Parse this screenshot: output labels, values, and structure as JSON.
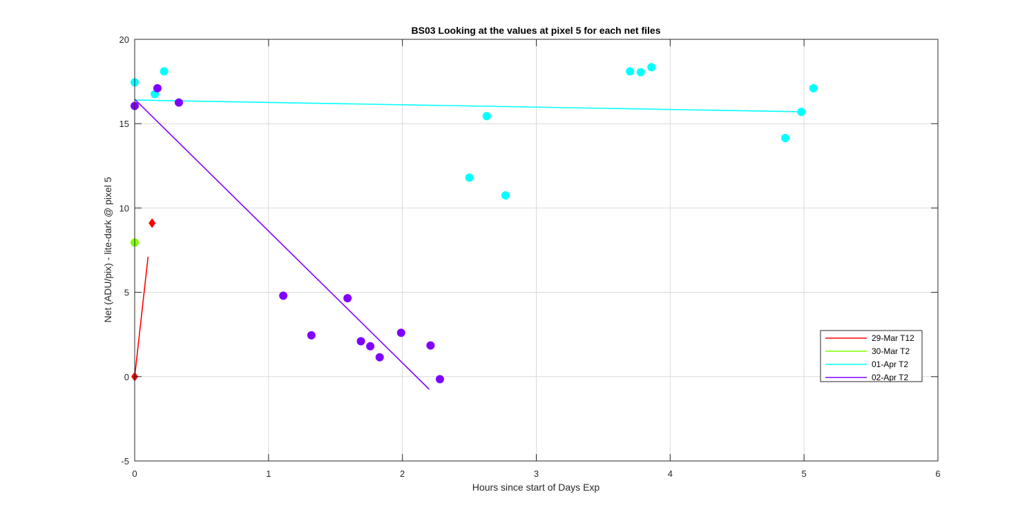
{
  "chart_data": {
    "type": "scatter",
    "title": "BS03  Looking at the values at pixel 5 for each net files",
    "xlabel": "Hours since start of Days Exp",
    "ylabel": "Net (ADU/pix) - lite-dark @ pixel 5",
    "xlim": [
      0,
      6
    ],
    "ylim": [
      -5,
      20
    ],
    "xticks": [
      0,
      1,
      2,
      3,
      4,
      5,
      6
    ],
    "yticks": [
      -5,
      0,
      5,
      10,
      15,
      20
    ],
    "grid": true,
    "legend_position": "lower-right",
    "series": [
      {
        "name": "29-Mar T12",
        "color": "#ff0000",
        "marker": "diamond",
        "points": [
          [
            0.0,
            0.0
          ],
          [
            0.13,
            9.1
          ]
        ],
        "fit": [
          [
            0.0,
            0.0
          ],
          [
            0.1,
            7.1
          ]
        ]
      },
      {
        "name": "30-Mar T2",
        "color": "#80ff00",
        "marker": "circle",
        "points": [
          [
            0.0,
            7.95
          ]
        ],
        "fit": []
      },
      {
        "name": "01-Apr T2",
        "color": "#00ffff",
        "marker": "circle",
        "points": [
          [
            0.0,
            17.45
          ],
          [
            0.15,
            16.75
          ],
          [
            0.22,
            18.1
          ],
          [
            2.5,
            11.8
          ],
          [
            2.63,
            15.45
          ],
          [
            2.77,
            10.75
          ],
          [
            3.7,
            18.1
          ],
          [
            3.78,
            18.05
          ],
          [
            3.86,
            18.35
          ],
          [
            4.86,
            14.15
          ],
          [
            4.98,
            15.7
          ],
          [
            5.07,
            17.1
          ]
        ],
        "fit": [
          [
            0.0,
            16.4
          ],
          [
            5.0,
            15.7
          ]
        ]
      },
      {
        "name": "02-Apr T2",
        "color": "#8000ff",
        "marker": "circle",
        "points": [
          [
            0.0,
            16.05
          ],
          [
            0.17,
            17.1
          ],
          [
            0.33,
            16.25
          ],
          [
            1.11,
            4.8
          ],
          [
            1.32,
            2.45
          ],
          [
            1.59,
            4.65
          ],
          [
            1.69,
            2.1
          ],
          [
            1.76,
            1.8
          ],
          [
            1.83,
            1.15
          ],
          [
            1.99,
            2.6
          ],
          [
            2.21,
            1.85
          ],
          [
            2.28,
            -0.15
          ]
        ],
        "fit": [
          [
            0.0,
            16.45
          ],
          [
            2.2,
            -0.75
          ]
        ]
      }
    ]
  }
}
